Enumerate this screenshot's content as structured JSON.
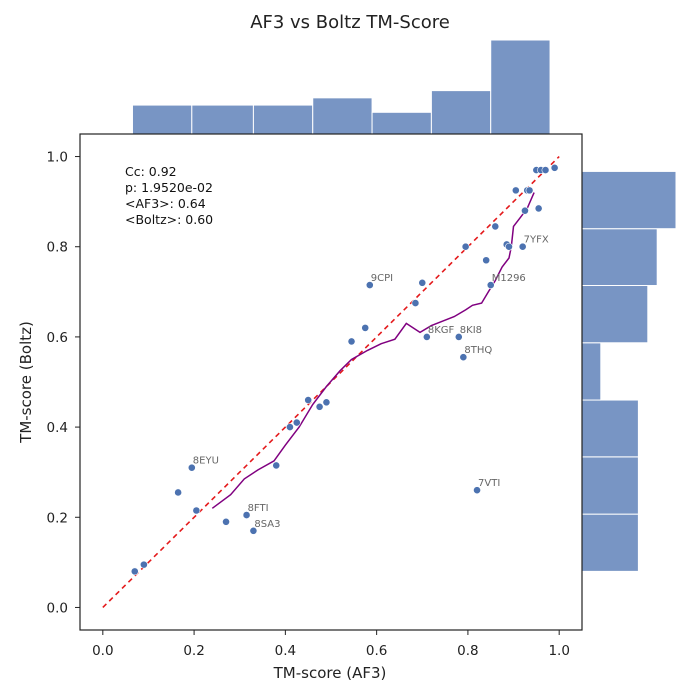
{
  "chart_data": {
    "type": "scatter",
    "title": "AF3 vs Boltz TM-Score",
    "xlabel": "TM-score (AF3)",
    "ylabel": "TM-score (Boltz)",
    "xlim": [
      -0.05,
      1.05
    ],
    "ylim": [
      -0.05,
      1.05
    ],
    "xticks": [
      "0.0",
      "0.2",
      "0.4",
      "0.6",
      "0.8",
      "1.0"
    ],
    "yticks": [
      "0.0",
      "0.2",
      "0.4",
      "0.6",
      "0.8",
      "1.0"
    ],
    "grid": false,
    "colors": {
      "points": "#4c72b0",
      "hist": "#7895c4",
      "diagonal": "#e41a1c",
      "trend": "#800080"
    },
    "annotations": [
      "Cc: 0.92",
      "p: 1.9520e-02",
      "<AF3>: 0.64",
      "<Boltz>: 0.60"
    ],
    "points": [
      {
        "x": 0.07,
        "y": 0.08
      },
      {
        "x": 0.09,
        "y": 0.095
      },
      {
        "x": 0.165,
        "y": 0.255
      },
      {
        "x": 0.195,
        "y": 0.31,
        "label": "8EYU"
      },
      {
        "x": 0.205,
        "y": 0.215
      },
      {
        "x": 0.27,
        "y": 0.19
      },
      {
        "x": 0.315,
        "y": 0.205,
        "label": "8FTI"
      },
      {
        "x": 0.33,
        "y": 0.17,
        "label": "8SA3"
      },
      {
        "x": 0.38,
        "y": 0.315
      },
      {
        "x": 0.41,
        "y": 0.4
      },
      {
        "x": 0.425,
        "y": 0.41
      },
      {
        "x": 0.45,
        "y": 0.46
      },
      {
        "x": 0.475,
        "y": 0.445
      },
      {
        "x": 0.49,
        "y": 0.455
      },
      {
        "x": 0.545,
        "y": 0.59
      },
      {
        "x": 0.575,
        "y": 0.62
      },
      {
        "x": 0.585,
        "y": 0.715,
        "label": "9CPI"
      },
      {
        "x": 0.685,
        "y": 0.675
      },
      {
        "x": 0.7,
        "y": 0.72
      },
      {
        "x": 0.71,
        "y": 0.6,
        "label": "8KGF"
      },
      {
        "x": 0.78,
        "y": 0.6,
        "label": "8KI8"
      },
      {
        "x": 0.79,
        "y": 0.555,
        "label": "8THQ"
      },
      {
        "x": 0.795,
        "y": 0.8
      },
      {
        "x": 0.82,
        "y": 0.26,
        "label": "7VTI"
      },
      {
        "x": 0.84,
        "y": 0.77
      },
      {
        "x": 0.85,
        "y": 0.715,
        "label": "M1296"
      },
      {
        "x": 0.86,
        "y": 0.845
      },
      {
        "x": 0.885,
        "y": 0.805
      },
      {
        "x": 0.89,
        "y": 0.8
      },
      {
        "x": 0.905,
        "y": 0.925
      },
      {
        "x": 0.92,
        "y": 0.8,
        "label": "7YFX"
      },
      {
        "x": 0.925,
        "y": 0.88
      },
      {
        "x": 0.93,
        "y": 0.925
      },
      {
        "x": 0.935,
        "y": 0.925
      },
      {
        "x": 0.95,
        "y": 0.97
      },
      {
        "x": 0.955,
        "y": 0.885
      },
      {
        "x": 0.96,
        "y": 0.97
      },
      {
        "x": 0.97,
        "y": 0.97
      },
      {
        "x": 0.99,
        "y": 0.975
      }
    ],
    "diagonal": [
      [
        0.0,
        0.0
      ],
      [
        1.0,
        1.0
      ]
    ],
    "trend": [
      [
        0.24,
        0.22
      ],
      [
        0.28,
        0.25
      ],
      [
        0.31,
        0.285
      ],
      [
        0.34,
        0.305
      ],
      [
        0.375,
        0.325
      ],
      [
        0.4,
        0.36
      ],
      [
        0.43,
        0.4
      ],
      [
        0.46,
        0.45
      ],
      [
        0.49,
        0.49
      ],
      [
        0.52,
        0.525
      ],
      [
        0.545,
        0.55
      ],
      [
        0.58,
        0.57
      ],
      [
        0.61,
        0.585
      ],
      [
        0.64,
        0.595
      ],
      [
        0.665,
        0.63
      ],
      [
        0.695,
        0.61
      ],
      [
        0.72,
        0.625
      ],
      [
        0.745,
        0.635
      ],
      [
        0.77,
        0.645
      ],
      [
        0.795,
        0.66
      ],
      [
        0.81,
        0.67
      ],
      [
        0.83,
        0.675
      ],
      [
        0.845,
        0.7
      ],
      [
        0.86,
        0.725
      ],
      [
        0.875,
        0.755
      ],
      [
        0.89,
        0.775
      ],
      [
        0.895,
        0.8
      ],
      [
        0.9,
        0.845
      ],
      [
        0.915,
        0.865
      ],
      [
        0.93,
        0.885
      ],
      [
        0.945,
        0.92
      ]
    ],
    "hist_x": {
      "bins": [
        [
          0.065,
          0.195
        ],
        [
          0.195,
          0.33
        ],
        [
          0.33,
          0.46
        ],
        [
          0.46,
          0.59
        ],
        [
          0.59,
          0.72
        ],
        [
          0.72,
          0.85
        ],
        [
          0.85,
          0.98
        ]
      ],
      "counts": [
        4,
        4,
        4,
        5,
        3,
        6,
        13
      ]
    },
    "hist_y": {
      "bins": [
        [
          0.08,
          0.207
        ],
        [
          0.207,
          0.334
        ],
        [
          0.334,
          0.46
        ],
        [
          0.46,
          0.587
        ],
        [
          0.587,
          0.714
        ],
        [
          0.714,
          0.84
        ],
        [
          0.84,
          0.967
        ]
      ],
      "counts": [
        6,
        6,
        6,
        2,
        7,
        8,
        10
      ]
    }
  }
}
